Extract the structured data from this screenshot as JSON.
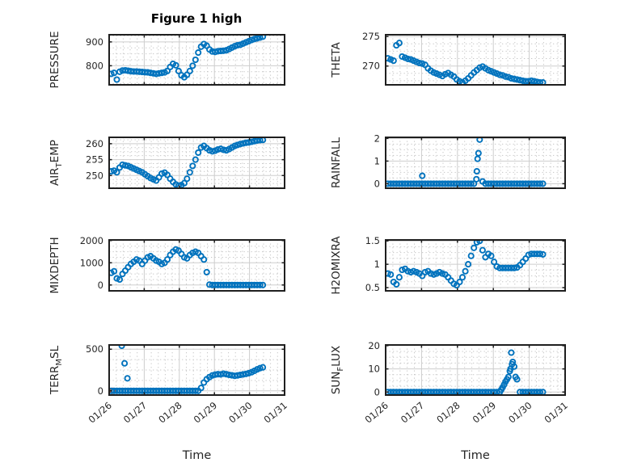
{
  "colors": {
    "marker": "#0072BD",
    "marker_alt": "#D95319",
    "axis_box": "#1f1f1f",
    "grid_major": "#cdcdcd",
    "grid_minor": "#c6c6c6",
    "text": "#262626"
  },
  "chart_data": {
    "type": "scatter",
    "marker": "open-circle",
    "title": "Figure 1 high",
    "xlabel": "Time",
    "grid": "major and minor dotted",
    "x": {
      "unit": "days since 01/26",
      "xlim": [
        0,
        5
      ],
      "tick_positions": [
        0,
        1,
        2,
        3,
        4,
        5
      ],
      "tick_labels": [
        "01/26",
        "01/27",
        "01/28",
        "01/29",
        "01/30",
        "01/31"
      ],
      "t": [
        0.06,
        0.14,
        0.22,
        0.3,
        0.38,
        0.46,
        0.54,
        0.62,
        0.7,
        0.78,
        0.86,
        0.94,
        1.02,
        1.1,
        1.18,
        1.26,
        1.34,
        1.42,
        1.5,
        1.58,
        1.66,
        1.74,
        1.82,
        1.9,
        1.98,
        2.06,
        2.14,
        2.22,
        2.3,
        2.38,
        2.46,
        2.54,
        2.62,
        2.7,
        2.78,
        2.86,
        2.94,
        3.02,
        3.1,
        3.18,
        3.26,
        3.34,
        3.42,
        3.5,
        3.58,
        3.66,
        3.74,
        3.82,
        3.9,
        3.98,
        4.06,
        4.14,
        4.22,
        4.3,
        4.38
      ]
    },
    "plots": [
      {
        "id": "pressure",
        "name": "PRESSURE",
        "ylabel": {
          "pre": "PRESSURE",
          "sub": "",
          "post": ""
        },
        "ylim": [
          720,
          930
        ],
        "yticks": [
          800,
          900
        ],
        "values": [
          766,
          770,
          742,
          775,
          780,
          781,
          779,
          777,
          776,
          776,
          775,
          774,
          773,
          772,
          770,
          768,
          766,
          768,
          770,
          772,
          778,
          795,
          808,
          802,
          778,
          760,
          752,
          762,
          778,
          800,
          825,
          855,
          880,
          891,
          884,
          868,
          860,
          858,
          861,
          862,
          863,
          865,
          870,
          876,
          882,
          886,
          888,
          893,
          898,
          903,
          908,
          912,
          915,
          918,
          922
        ]
      },
      {
        "id": "theta",
        "name": "THETA",
        "ylabel": {
          "pre": "THETA",
          "sub": "",
          "post": ""
        },
        "ylim": [
          266.8,
          275.3
        ],
        "yticks": [
          270,
          275
        ],
        "values": [
          271.3,
          271.1,
          270.9,
          273.5,
          273.9,
          271.6,
          271.4,
          271.2,
          271.1,
          270.9,
          270.7,
          270.5,
          270.4,
          270.2,
          269.6,
          269.2,
          268.9,
          268.7,
          268.5,
          268.3,
          268.6,
          268.8,
          268.5,
          268.2,
          267.7,
          267.4,
          267.2,
          267.5,
          267.9,
          268.4,
          268.9,
          269.3,
          269.7,
          269.9,
          269.6,
          269.3,
          269.1,
          268.9,
          268.7,
          268.5,
          268.4,
          268.2,
          268.1,
          267.9,
          267.8,
          267.7,
          267.6,
          267.5,
          267.4,
          267.4,
          267.5,
          267.4,
          267.3,
          267.2,
          267.2
        ]
      },
      {
        "id": "air_temp",
        "name": "AIR_TEMP",
        "ylabel": {
          "pre": "AIR",
          "sub": "T",
          "post": "EMP"
        },
        "ylim": [
          246,
          262
        ],
        "yticks": [
          250,
          255,
          260
        ],
        "values": [
          251.3,
          251.5,
          251.0,
          252.5,
          253.4,
          253.2,
          253.0,
          252.6,
          252.2,
          251.8,
          251.4,
          251.0,
          250.4,
          249.8,
          249.2,
          248.8,
          248.4,
          249.4,
          250.6,
          250.9,
          250.2,
          249.0,
          248.0,
          247.2,
          246.8,
          247.0,
          247.6,
          249.0,
          251.0,
          253.0,
          255.0,
          257.2,
          258.8,
          259.3,
          258.6,
          257.9,
          257.6,
          257.8,
          258.2,
          258.4,
          258.1,
          257.9,
          258.3,
          258.8,
          259.3,
          259.6,
          259.9,
          260.1,
          260.3,
          260.4,
          260.6,
          260.8,
          261.0,
          261.1,
          261.2
        ]
      },
      {
        "id": "rainfall",
        "name": "RAINFALL",
        "ylabel": {
          "pre": "RAINFALL",
          "sub": "",
          "post": ""
        },
        "ylim": [
          -0.2,
          2.05
        ],
        "yticks": [
          0,
          1,
          2
        ],
        "values": [
          0,
          0,
          0,
          0,
          0,
          0,
          0,
          0,
          0,
          0,
          0,
          0,
          0,
          0,
          0,
          0,
          0,
          0,
          0,
          0,
          0,
          0,
          0,
          0,
          0,
          0,
          0,
          0,
          0,
          0,
          0,
          0.55,
          1.95,
          0.1,
          0,
          0,
          0,
          0,
          0,
          0,
          0,
          0,
          0,
          0,
          0,
          0,
          0,
          0,
          0,
          0,
          0,
          0,
          0,
          0,
          0
        ],
        "extra_points": [
          [
            1.02,
            0.35
          ],
          [
            2.53,
            0.2
          ],
          [
            2.56,
            1.1
          ],
          [
            2.585,
            1.35
          ]
        ]
      },
      {
        "id": "mixdepth",
        "name": "MIXDEPTH",
        "ylabel": {
          "pre": "MIXDEPTH",
          "sub": "",
          "post": ""
        },
        "ylim": [
          -260,
          2030
        ],
        "yticks": [
          0,
          1000,
          2000
        ],
        "values": [
          550,
          620,
          300,
          250,
          500,
          650,
          800,
          950,
          1050,
          1150,
          1100,
          950,
          1100,
          1250,
          1300,
          1200,
          1100,
          1050,
          950,
          1000,
          1150,
          1350,
          1500,
          1600,
          1550,
          1400,
          1250,
          1200,
          1350,
          1450,
          1500,
          1450,
          1300,
          1150,
          580,
          20,
          0,
          0,
          0,
          0,
          0,
          0,
          0,
          0,
          0,
          0,
          0,
          0,
          0,
          0,
          0,
          0,
          0,
          0,
          0
        ]
      },
      {
        "id": "h2omixra",
        "name": "H2OMIXRA",
        "ylabel": {
          "pre": "H2OMIXRA",
          "sub": "",
          "post": ""
        },
        "ylim": [
          0.43,
          1.52
        ],
        "yticks": [
          0.5,
          1,
          1.5
        ],
        "values": [
          0.8,
          0.78,
          0.62,
          0.57,
          0.72,
          0.88,
          0.9,
          0.85,
          0.83,
          0.85,
          0.83,
          0.8,
          0.75,
          0.83,
          0.85,
          0.8,
          0.78,
          0.8,
          0.83,
          0.8,
          0.78,
          0.72,
          0.65,
          0.58,
          0.55,
          0.62,
          0.72,
          0.85,
          1.0,
          1.18,
          1.35,
          1.47,
          1.5,
          1.3,
          1.15,
          1.22,
          1.18,
          1.05,
          0.95,
          0.92,
          0.92,
          0.92,
          0.92,
          0.92,
          0.92,
          0.93,
          0.98,
          1.05,
          1.12,
          1.2,
          1.22,
          1.22,
          1.22,
          1.22,
          1.21
        ]
      },
      {
        "id": "terr_msl",
        "name": "TERR_MSL",
        "ylabel": {
          "pre": "TERR",
          "sub": "M",
          "post": "SL"
        },
        "ylim": [
          -50,
          550
        ],
        "yticks": [
          0,
          500
        ],
        "values": [
          0,
          0,
          0,
          0,
          0,
          0,
          0,
          0,
          0,
          0,
          0,
          0,
          0,
          0,
          0,
          0,
          0,
          0,
          0,
          0,
          0,
          0,
          0,
          0,
          0,
          0,
          0,
          0,
          0,
          0,
          0,
          0,
          35,
          100,
          140,
          165,
          185,
          195,
          200,
          198,
          205,
          200,
          192,
          186,
          180,
          185,
          192,
          198,
          204,
          212,
          224,
          240,
          258,
          272,
          282
        ],
        "extra_points": [
          [
            0.36,
            540
          ],
          [
            0.44,
            330
          ],
          [
            0.52,
            150
          ]
        ],
        "alt_points": [
          [
            0.1,
            0
          ]
        ]
      },
      {
        "id": "sun_flux",
        "name": "SUN_FLUX",
        "ylabel": {
          "pre": "SUN",
          "sub": "F",
          "post": "LUX"
        },
        "ylim": [
          -1.3,
          20.3
        ],
        "yticks": [
          0,
          10,
          20
        ],
        "values": [
          0,
          0,
          0,
          0,
          0,
          0,
          0,
          0,
          0,
          0,
          0,
          0,
          0,
          0,
          0,
          0,
          0,
          0,
          0,
          0,
          0,
          0,
          0,
          0,
          0,
          0,
          0,
          0,
          0,
          0,
          0,
          0,
          0,
          0,
          0,
          0,
          0,
          0,
          0,
          0,
          2,
          4.5,
          6.5,
          17,
          11,
          5.5,
          0,
          0,
          0,
          0,
          0,
          0,
          0,
          0,
          0
        ],
        "extra_points": [
          [
            3.22,
            1
          ],
          [
            3.3,
            3.2
          ],
          [
            3.38,
            5.5
          ],
          [
            3.46,
            9
          ],
          [
            3.48,
            10
          ],
          [
            3.52,
            12
          ],
          [
            3.54,
            13
          ],
          [
            3.62,
            6.5
          ]
        ]
      }
    ]
  }
}
